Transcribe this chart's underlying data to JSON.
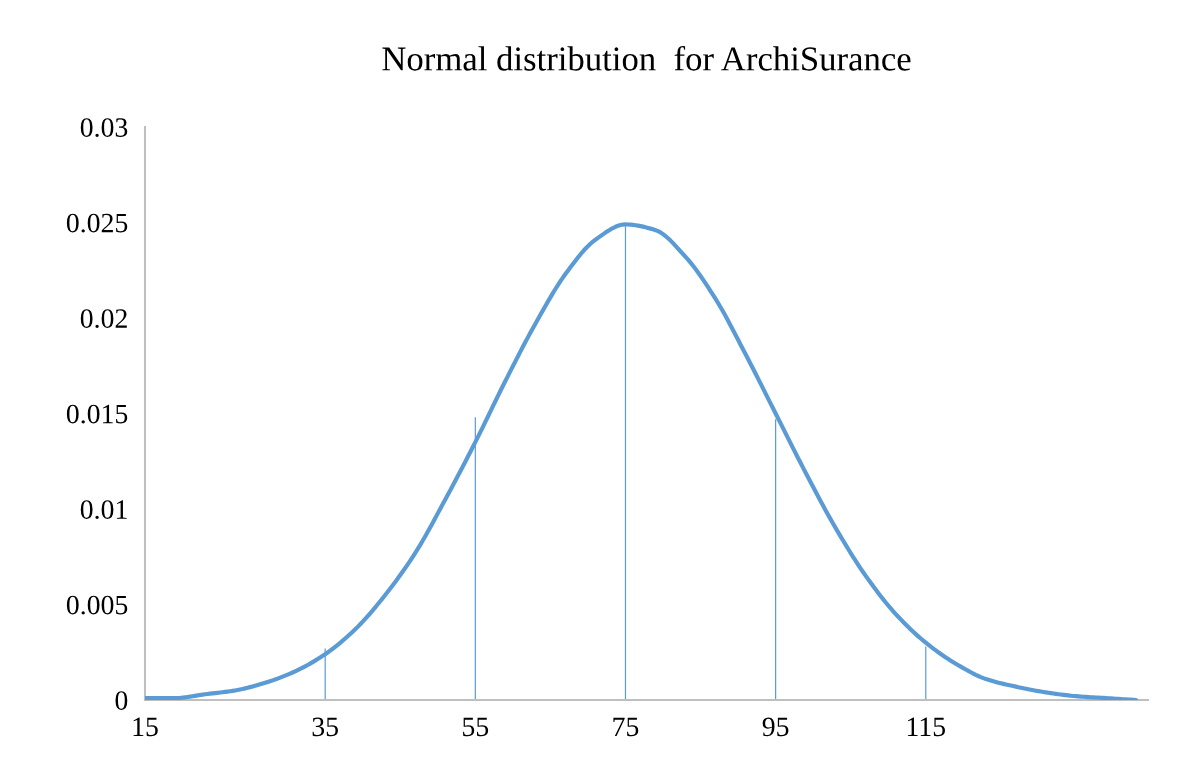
{
  "chart_data": {
    "type": "line",
    "title": "Normal distribution  for ArchiSurance",
    "categories": [
      "15",
      null,
      null,
      null,
      null,
      null,
      "35",
      null,
      null,
      null,
      null,
      "55",
      null,
      null,
      null,
      null,
      "75",
      null,
      null,
      null,
      null,
      "95",
      null,
      null,
      null,
      null,
      "115",
      null,
      null,
      null,
      null,
      null,
      null,
      null
    ],
    "series": [
      {
        "color": "#5b9bd5",
        "values": [
          0.0001,
          0.0001,
          0.0003,
          0.0005,
          0.0009,
          0.0015,
          0.0024,
          0.0037,
          0.0055,
          0.0077,
          0.0105,
          0.0135,
          0.0167,
          0.0197,
          0.0223,
          0.0241,
          0.0249,
          0.0246,
          0.0232,
          0.021,
          0.0181,
          0.015,
          0.0119,
          0.009,
          0.0065,
          0.0045,
          0.003,
          0.0019,
          0.0011,
          0.0007,
          0.0004,
          0.0002,
          0.0001,
          0.0
        ]
      },
      {
        "type": "bar",
        "color": "#5b9bd5",
        "values": [
          null,
          null,
          null,
          null,
          null,
          null,
          0.0027,
          null,
          null,
          null,
          null,
          0.0148,
          null,
          null,
          null,
          null,
          0.0248,
          null,
          null,
          null,
          null,
          0.0147,
          null,
          null,
          null,
          null,
          0.0028,
          null,
          null,
          null,
          null,
          null,
          null,
          null
        ]
      }
    ],
    "ylim": [
      0,
      0.03
    ],
    "yticks": [
      {
        "value": 0,
        "label": "0"
      },
      0.005,
      0.01,
      0.015,
      0.02,
      0.025,
      0.03
    ],
    "grid": false
  }
}
